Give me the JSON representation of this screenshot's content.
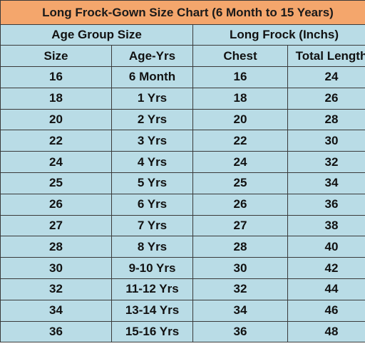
{
  "title": "Long Frock-Gown Size Chart  (6 Month to 15 Years)",
  "groups": [
    "Age Group Size",
    "Long Frock (Inchs)"
  ],
  "columns": [
    "Size",
    "Age-Yrs",
    "Chest",
    "Total Length"
  ],
  "rows": [
    [
      "16",
      "6 Month",
      "16",
      "24"
    ],
    [
      "18",
      "1 Yrs",
      "18",
      "26"
    ],
    [
      "20",
      "2 Yrs",
      "20",
      "28"
    ],
    [
      "22",
      "3 Yrs",
      "22",
      "30"
    ],
    [
      "24",
      "4 Yrs",
      "24",
      "32"
    ],
    [
      "25",
      "5 Yrs",
      "25",
      "34"
    ],
    [
      "26",
      "6 Yrs",
      "26",
      "36"
    ],
    [
      "27",
      "7 Yrs",
      "27",
      "38"
    ],
    [
      "28",
      "8 Yrs",
      "28",
      "40"
    ],
    [
      "30",
      "9-10 Yrs",
      "30",
      "42"
    ],
    [
      "32",
      "11-12 Yrs",
      "32",
      "44"
    ],
    [
      "34",
      "13-14 Yrs",
      "34",
      "46"
    ],
    [
      "36",
      "15-16 Yrs",
      "36",
      "48"
    ]
  ],
  "colors": {
    "title_bg": "#f4a66c",
    "cell_bg": "#b9dce6",
    "border": "#3a3a3a"
  }
}
